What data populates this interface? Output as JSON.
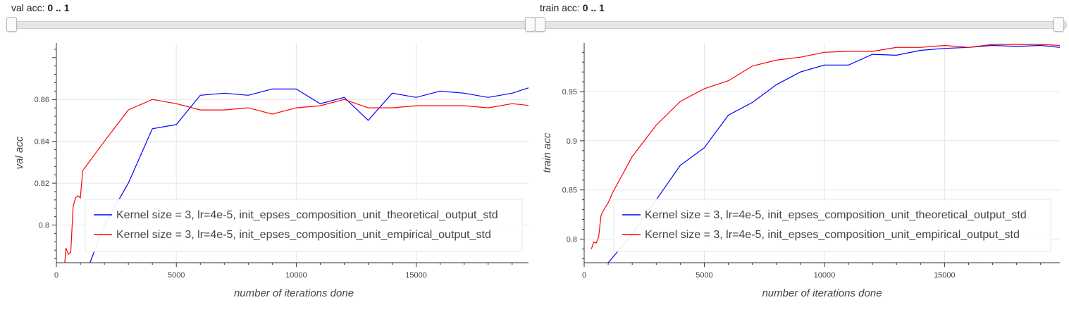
{
  "sliders": [
    {
      "label": "val acc:",
      "range": "0 .. 1",
      "start": 0,
      "end": 1
    },
    {
      "label": "train acc:",
      "range": "0 .. 1",
      "start": 0,
      "end": 1
    }
  ],
  "chart_data": [
    {
      "type": "line",
      "xlabel": "number of iterations done",
      "ylabel": "val acc",
      "xlim": [
        0,
        19800
      ],
      "ylim": [
        0.782,
        0.887
      ],
      "xticks": [
        0,
        5000,
        10000,
        15000
      ],
      "xtick_labels": [
        "0",
        "5000",
        "10000",
        "15000"
      ],
      "yticks": [
        0.8,
        0.82,
        0.84,
        0.86
      ],
      "ytick_labels": [
        "0.8",
        "0.82",
        "0.84",
        "0.86"
      ],
      "grid": true,
      "legend_position": "bottom-right",
      "series": [
        {
          "name": "Kernel size = 3, lr=4e-5, init_epses_composition_unit_theoretical_output_std",
          "color": "#0000ff",
          "x": [
            1400,
            2000,
            3000,
            4000,
            5000,
            6000,
            7000,
            8000,
            9000,
            10000,
            11000,
            12000,
            13000,
            14000,
            15000,
            16000,
            17000,
            18000,
            19000,
            19800
          ],
          "y": [
            0.782,
            0.8,
            0.82,
            0.846,
            0.848,
            0.862,
            0.863,
            0.862,
            0.865,
            0.865,
            0.858,
            0.861,
            0.85,
            0.863,
            0.861,
            0.864,
            0.863,
            0.861,
            0.863,
            0.866
          ]
        },
        {
          "name": "Kernel size = 3, lr=4e-5, init_epses_composition_unit_empirical_output_std",
          "color": "#ff0000",
          "x": [
            350,
            400,
            500,
            600,
            700,
            800,
            900,
            1000,
            1100,
            2000,
            3000,
            4000,
            5000,
            6000,
            7000,
            8000,
            9000,
            10000,
            11000,
            12000,
            13000,
            14000,
            15000,
            16000,
            17000,
            18000,
            19000,
            19800
          ],
          "y": [
            0.782,
            0.789,
            0.786,
            0.787,
            0.809,
            0.813,
            0.814,
            0.813,
            0.826,
            0.84,
            0.855,
            0.86,
            0.858,
            0.855,
            0.855,
            0.856,
            0.853,
            0.856,
            0.857,
            0.86,
            0.856,
            0.856,
            0.857,
            0.857,
            0.857,
            0.856,
            0.858,
            0.857
          ]
        }
      ]
    },
    {
      "type": "line",
      "xlabel": "number of iterations done",
      "ylabel": "train acc",
      "xlim": [
        0,
        19800
      ],
      "ylim": [
        0.776,
        0.9995
      ],
      "xticks": [
        0,
        5000,
        10000,
        15000
      ],
      "xtick_labels": [
        "0",
        "5000",
        "10000",
        "15000"
      ],
      "yticks": [
        0.8,
        0.85,
        0.9,
        0.95
      ],
      "ytick_labels": [
        "0.8",
        "0.85",
        "0.9",
        "0.95"
      ],
      "grid": true,
      "legend_position": "bottom-right",
      "series": [
        {
          "name": "Kernel size = 3, lr=4e-5, init_epses_composition_unit_theoretical_output_std",
          "color": "#0000ff",
          "x": [
            1000,
            2000,
            3000,
            4000,
            5000,
            6000,
            7000,
            8000,
            9000,
            10000,
            11000,
            12000,
            13000,
            14000,
            15000,
            16000,
            17000,
            18000,
            19000,
            19800
          ],
          "y": [
            0.776,
            0.805,
            0.84,
            0.875,
            0.893,
            0.926,
            0.939,
            0.957,
            0.97,
            0.977,
            0.977,
            0.988,
            0.987,
            0.992,
            0.994,
            0.995,
            0.997,
            0.996,
            0.997,
            0.995
          ],
          "label_hint": "theoretical"
        },
        {
          "name": "Kernel size = 3, lr=4e-5, init_epses_composition_unit_empirical_output_std",
          "color": "#ff0000",
          "x": [
            300,
            400,
            500,
            600,
            700,
            800,
            1000,
            1200,
            2000,
            3000,
            4000,
            5000,
            6000,
            7000,
            8000,
            9000,
            10000,
            11000,
            12000,
            13000,
            14000,
            15000,
            16000,
            17000,
            18000,
            19000,
            19800
          ],
          "y": [
            0.79,
            0.797,
            0.796,
            0.802,
            0.824,
            0.829,
            0.837,
            0.848,
            0.884,
            0.916,
            0.94,
            0.953,
            0.961,
            0.976,
            0.982,
            0.985,
            0.99,
            0.991,
            0.991,
            0.995,
            0.995,
            0.997,
            0.995,
            0.998,
            0.998,
            0.998,
            0.997
          ]
        }
      ]
    }
  ]
}
